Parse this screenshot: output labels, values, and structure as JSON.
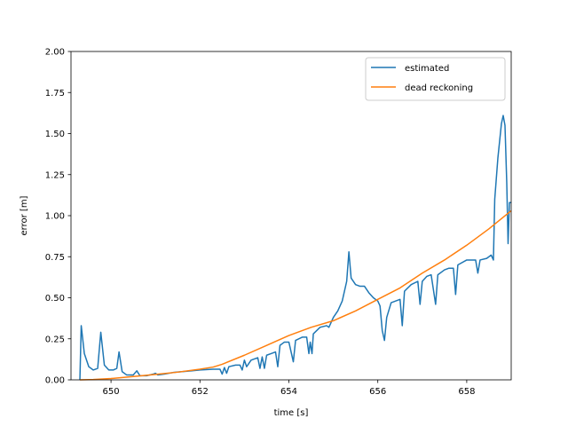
{
  "chart_data": {
    "type": "line",
    "title": "",
    "xlabel": "time [s]",
    "ylabel": "error [m]",
    "xlim": [
      649.1,
      659.0
    ],
    "ylim": [
      0.0,
      2.0
    ],
    "xticks": [
      650,
      652,
      654,
      656,
      658
    ],
    "xtick_labels": [
      "650",
      "652",
      "654",
      "656",
      "658"
    ],
    "yticks": [
      0.0,
      0.25,
      0.5,
      0.75,
      1.0,
      1.25,
      1.5,
      1.75,
      2.0
    ],
    "ytick_labels": [
      "0.00",
      "0.25",
      "0.50",
      "0.75",
      "1.00",
      "1.25",
      "1.50",
      "1.75",
      "2.00"
    ],
    "grid": false,
    "legend_position": "top-right",
    "series": [
      {
        "name": "estimated",
        "color": "#1f77b4",
        "points": [
          [
            649.3,
            0.0
          ],
          [
            649.33,
            0.33
          ],
          [
            649.4,
            0.16
          ],
          [
            649.5,
            0.08
          ],
          [
            649.6,
            0.06
          ],
          [
            649.7,
            0.07
          ],
          [
            649.77,
            0.29
          ],
          [
            649.85,
            0.09
          ],
          [
            649.95,
            0.06
          ],
          [
            650.05,
            0.06
          ],
          [
            650.13,
            0.07
          ],
          [
            650.18,
            0.17
          ],
          [
            650.25,
            0.05
          ],
          [
            650.35,
            0.03
          ],
          [
            650.5,
            0.03
          ],
          [
            650.58,
            0.055
          ],
          [
            650.65,
            0.025
          ],
          [
            650.8,
            0.025
          ],
          [
            650.95,
            0.035
          ],
          [
            651.0,
            0.04
          ],
          [
            651.05,
            0.03
          ],
          [
            651.2,
            0.035
          ],
          [
            651.4,
            0.045
          ],
          [
            651.6,
            0.05
          ],
          [
            651.8,
            0.055
          ],
          [
            652.0,
            0.06
          ],
          [
            652.3,
            0.065
          ],
          [
            652.45,
            0.065
          ],
          [
            652.5,
            0.035
          ],
          [
            652.55,
            0.075
          ],
          [
            652.6,
            0.04
          ],
          [
            652.65,
            0.08
          ],
          [
            652.8,
            0.09
          ],
          [
            652.9,
            0.09
          ],
          [
            652.95,
            0.06
          ],
          [
            653.0,
            0.12
          ],
          [
            653.05,
            0.08
          ],
          [
            653.15,
            0.12
          ],
          [
            653.3,
            0.135
          ],
          [
            653.35,
            0.07
          ],
          [
            653.4,
            0.14
          ],
          [
            653.45,
            0.07
          ],
          [
            653.5,
            0.15
          ],
          [
            653.6,
            0.16
          ],
          [
            653.7,
            0.17
          ],
          [
            653.75,
            0.08
          ],
          [
            653.8,
            0.21
          ],
          [
            653.9,
            0.23
          ],
          [
            654.0,
            0.23
          ],
          [
            654.1,
            0.11
          ],
          [
            654.15,
            0.24
          ],
          [
            654.3,
            0.26
          ],
          [
            654.4,
            0.26
          ],
          [
            654.45,
            0.16
          ],
          [
            654.48,
            0.23
          ],
          [
            654.52,
            0.16
          ],
          [
            654.55,
            0.28
          ],
          [
            654.7,
            0.32
          ],
          [
            654.85,
            0.33
          ],
          [
            654.9,
            0.32
          ],
          [
            655.0,
            0.38
          ],
          [
            655.1,
            0.42
          ],
          [
            655.2,
            0.48
          ],
          [
            655.3,
            0.6
          ],
          [
            655.35,
            0.78
          ],
          [
            655.4,
            0.62
          ],
          [
            655.5,
            0.58
          ],
          [
            655.6,
            0.57
          ],
          [
            655.7,
            0.57
          ],
          [
            655.8,
            0.53
          ],
          [
            655.9,
            0.5
          ],
          [
            656.0,
            0.48
          ],
          [
            656.05,
            0.45
          ],
          [
            656.1,
            0.3
          ],
          [
            656.15,
            0.24
          ],
          [
            656.2,
            0.38
          ],
          [
            656.3,
            0.47
          ],
          [
            656.4,
            0.48
          ],
          [
            656.5,
            0.49
          ],
          [
            656.55,
            0.33
          ],
          [
            656.6,
            0.54
          ],
          [
            656.75,
            0.58
          ],
          [
            656.9,
            0.6
          ],
          [
            656.95,
            0.46
          ],
          [
            657.0,
            0.6
          ],
          [
            657.1,
            0.63
          ],
          [
            657.2,
            0.64
          ],
          [
            657.3,
            0.46
          ],
          [
            657.35,
            0.64
          ],
          [
            657.5,
            0.67
          ],
          [
            657.6,
            0.68
          ],
          [
            657.7,
            0.68
          ],
          [
            657.75,
            0.52
          ],
          [
            657.8,
            0.7
          ],
          [
            658.0,
            0.73
          ],
          [
            658.1,
            0.73
          ],
          [
            658.2,
            0.73
          ],
          [
            658.25,
            0.65
          ],
          [
            658.3,
            0.73
          ],
          [
            658.45,
            0.74
          ],
          [
            658.55,
            0.76
          ],
          [
            658.6,
            0.73
          ],
          [
            658.63,
            1.1
          ],
          [
            658.7,
            1.35
          ],
          [
            658.78,
            1.56
          ],
          [
            658.82,
            1.61
          ],
          [
            658.86,
            1.55
          ],
          [
            658.9,
            1.2
          ],
          [
            658.93,
            0.83
          ],
          [
            658.96,
            1.08
          ],
          [
            659.0,
            1.08
          ]
        ]
      },
      {
        "name": "dead reckoning",
        "color": "#ff7f0e",
        "points": [
          [
            649.3,
            0.0
          ],
          [
            649.6,
            0.002
          ],
          [
            650.0,
            0.008
          ],
          [
            650.5,
            0.02
          ],
          [
            651.0,
            0.033
          ],
          [
            651.5,
            0.047
          ],
          [
            652.0,
            0.065
          ],
          [
            652.3,
            0.078
          ],
          [
            652.5,
            0.095
          ],
          [
            653.0,
            0.15
          ],
          [
            653.5,
            0.21
          ],
          [
            654.0,
            0.27
          ],
          [
            654.5,
            0.32
          ],
          [
            655.0,
            0.36
          ],
          [
            655.5,
            0.42
          ],
          [
            656.0,
            0.49
          ],
          [
            656.5,
            0.56
          ],
          [
            657.0,
            0.65
          ],
          [
            657.5,
            0.73
          ],
          [
            658.0,
            0.82
          ],
          [
            658.5,
            0.92
          ],
          [
            659.0,
            1.03
          ]
        ]
      }
    ]
  }
}
